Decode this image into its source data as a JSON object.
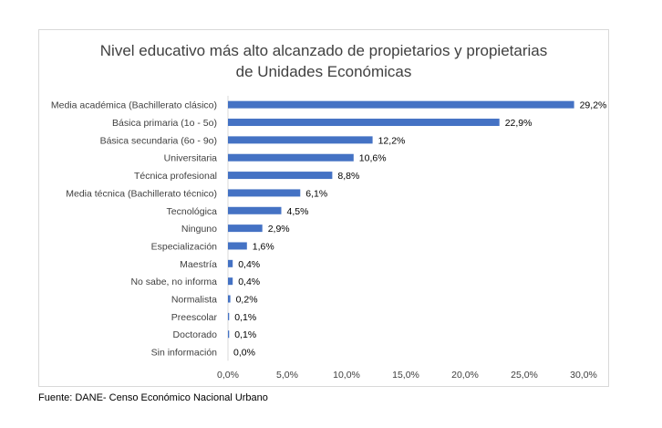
{
  "chart_data": {
    "type": "bar",
    "orientation": "horizontal",
    "title_lines": [
      "Nivel educativo más alto alcanzado de propietarios y propietarias",
      "de Unidades Económicas"
    ],
    "categories": [
      "Media académica (Bachillerato clásico)",
      "Básica primaria (1o - 5o)",
      "Básica secundaria (6o - 9o)",
      "Universitaria",
      "Técnica profesional",
      "Media técnica (Bachillerato técnico)",
      "Tecnológica",
      "Ninguno",
      "Especialización",
      "Maestría",
      "No sabe, no informa",
      "Normalista",
      "Preescolar",
      "Doctorado",
      "Sin información"
    ],
    "values": [
      29.2,
      22.9,
      12.2,
      10.6,
      8.8,
      6.1,
      4.5,
      2.9,
      1.6,
      0.4,
      0.4,
      0.2,
      0.1,
      0.1,
      0.0
    ],
    "data_labels": [
      "29,2%",
      "22,9%",
      "12,2%",
      "10,6%",
      "8,8%",
      "6,1%",
      "4,5%",
      "2,9%",
      "1,6%",
      "0,4%",
      "0,4%",
      "0,2%",
      "0,1%",
      "0,1%",
      "0,0%"
    ],
    "xlim": [
      0,
      30
    ],
    "x_ticks": [
      0,
      5,
      10,
      15,
      20,
      25,
      30
    ],
    "x_tick_labels": [
      "0,0%",
      "5,0%",
      "10,0%",
      "15,0%",
      "20,0%",
      "25,0%",
      "30,0%"
    ],
    "grid": false,
    "legend": "none",
    "bar_color": "#4472c4"
  },
  "source": "Fuente: DANE- Censo Económico Nacional Urbano"
}
